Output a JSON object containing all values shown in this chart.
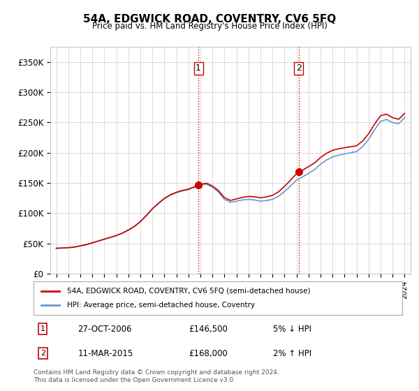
{
  "title": "54A, EDGWICK ROAD, COVENTRY, CV6 5FQ",
  "subtitle": "Price paid vs. HM Land Registry's House Price Index (HPI)",
  "legend_line1": "54A, EDGWICK ROAD, COVENTRY, CV6 5FQ (semi-detached house)",
  "legend_line2": "HPI: Average price, semi-detached house, Coventry",
  "footnote": "Contains HM Land Registry data © Crown copyright and database right 2024.\nThis data is licensed under the Open Government Licence v3.0.",
  "transaction1_label": "1",
  "transaction1_date": "27-OCT-2006",
  "transaction1_price": "£146,500",
  "transaction1_hpi": "5% ↓ HPI",
  "transaction2_label": "2",
  "transaction2_date": "11-MAR-2015",
  "transaction2_price": "£168,000",
  "transaction2_hpi": "2% ↑ HPI",
  "red_color": "#cc0000",
  "blue_color": "#6699cc",
  "background_color": "#ffffff",
  "grid_color": "#cccccc",
  "vline_color": "#cc0000",
  "vline_style": ":",
  "ylim_min": 0,
  "ylim_max": 375000,
  "yticks": [
    0,
    50000,
    100000,
    150000,
    200000,
    250000,
    300000,
    350000
  ],
  "ytick_labels": [
    "£0",
    "£50K",
    "£100K",
    "£150K",
    "£200K",
    "£250K",
    "£300K",
    "£350K"
  ],
  "point1_x": 2006.83,
  "point1_y": 146500,
  "point2_x": 2015.19,
  "point2_y": 168000,
  "marker_color": "#cc0000",
  "marker_size": 7,
  "hpi_years": [
    1995,
    1995.5,
    1996,
    1996.5,
    1997,
    1997.5,
    1998,
    1998.5,
    1999,
    1999.5,
    2000,
    2000.5,
    2001,
    2001.5,
    2002,
    2002.5,
    2003,
    2003.5,
    2004,
    2004.5,
    2005,
    2005.5,
    2006,
    2006.5,
    2007,
    2007.5,
    2008,
    2008.5,
    2009,
    2009.5,
    2010,
    2010.5,
    2011,
    2011.5,
    2012,
    2012.5,
    2013,
    2013.5,
    2014,
    2014.5,
    2015,
    2015.5,
    2016,
    2016.5,
    2017,
    2017.5,
    2018,
    2018.5,
    2019,
    2019.5,
    2020,
    2020.5,
    2021,
    2021.5,
    2022,
    2022.5,
    2023,
    2023.5,
    2024
  ],
  "hpi_values": [
    42000,
    42500,
    43000,
    44000,
    46000,
    48000,
    51000,
    54000,
    57000,
    60000,
    63000,
    67000,
    72000,
    78000,
    86000,
    96000,
    107000,
    116000,
    124000,
    130000,
    134000,
    137000,
    139000,
    143000,
    147000,
    148000,
    143000,
    135000,
    123000,
    118000,
    120000,
    122000,
    123000,
    122000,
    120000,
    121000,
    123000,
    128000,
    136000,
    145000,
    155000,
    160000,
    166000,
    172000,
    181000,
    188000,
    193000,
    196000,
    198000,
    200000,
    202000,
    210000,
    222000,
    238000,
    252000,
    255000,
    250000,
    248000,
    258000
  ],
  "price_paid_years": [
    1995,
    2006.83,
    2015.19,
    2024
  ],
  "price_paid_values": [
    42000,
    146500,
    168000,
    265000
  ],
  "xlim_min": 1994.5,
  "xlim_max": 2024.5
}
